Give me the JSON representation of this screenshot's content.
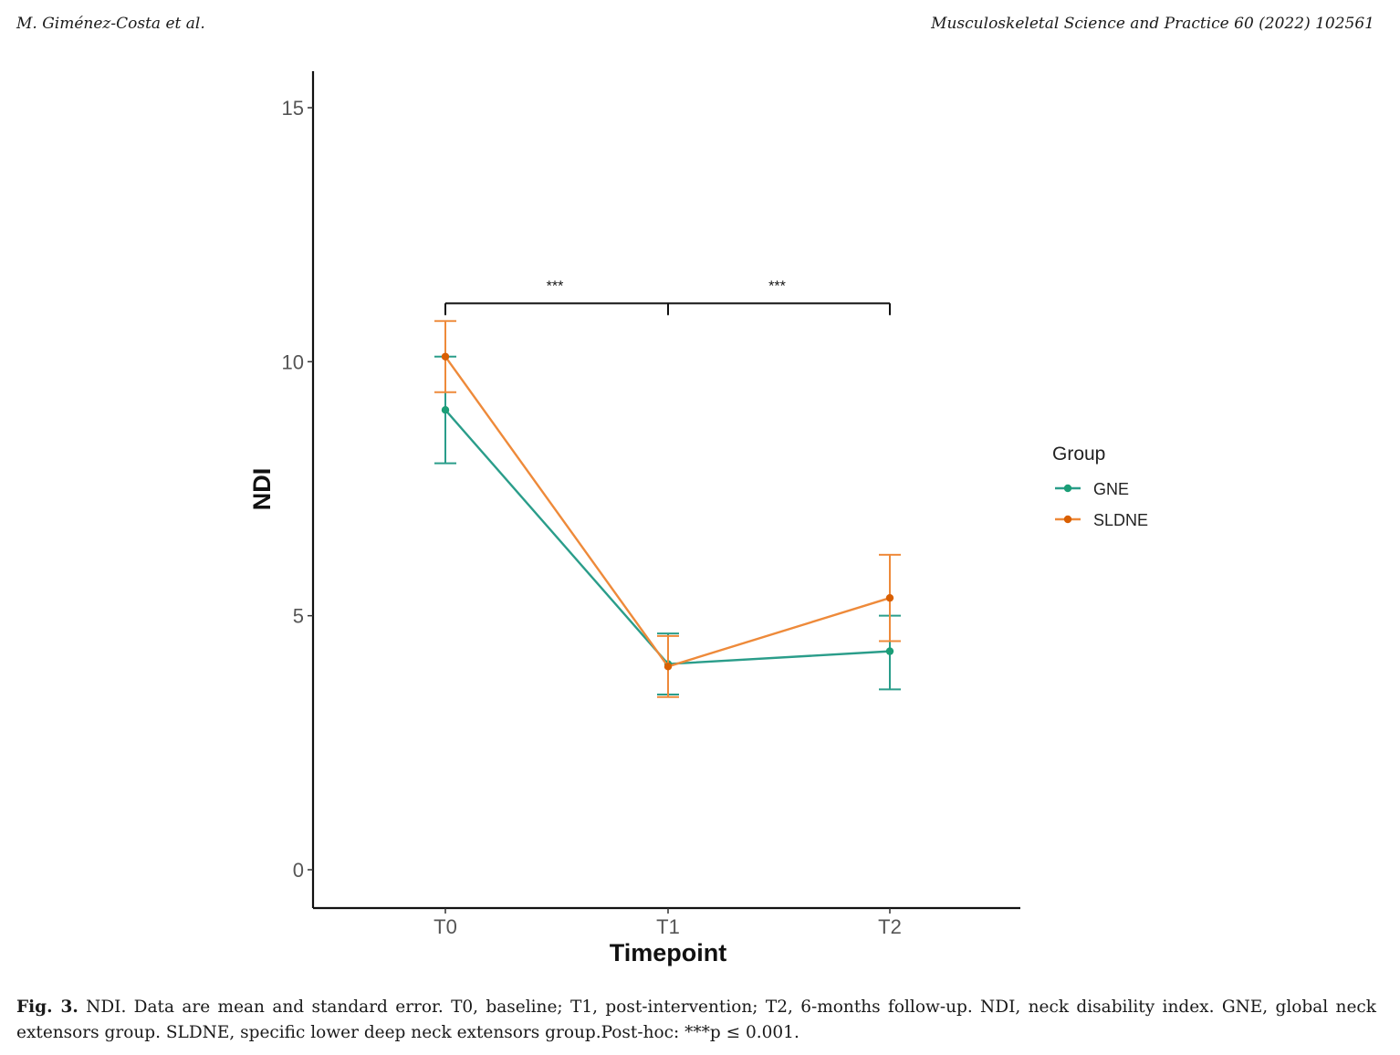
{
  "header": {
    "left": "M. Giménez-Costa et al.",
    "right": "Musculoskeletal Science and Practice 60 (2022) 102561"
  },
  "caption": {
    "label": "Fig. 3.",
    "text": "NDI. Data are mean and standard error. T0, baseline; T1, post-intervention; T2, 6-months follow-up. NDI, neck disability index. GNE, global neck extensors group. SLDNE, specific lower deep neck extensors group.Post-hoc: ***p ≤ 0.001."
  },
  "chart_data": {
    "type": "line",
    "title": "",
    "xlabel": "Timepoint",
    "ylabel": "NDI",
    "categories": [
      "T0",
      "T1",
      "T2"
    ],
    "yticks": [
      0,
      5,
      10,
      15
    ],
    "ylim": [
      -0.75,
      15.75
    ],
    "grid": false,
    "legend": {
      "title": "Group",
      "position": "right"
    },
    "series": [
      {
        "name": "GNE",
        "color": "#1b9e77",
        "values": [
          9.05,
          4.05,
          4.3
        ],
        "lower": [
          8.0,
          3.45,
          3.55
        ],
        "upper": [
          10.1,
          4.65,
          5.0
        ]
      },
      {
        "name": "SLDNE",
        "color": "#d95f02",
        "values": [
          10.1,
          4.0,
          5.35
        ],
        "lower": [
          9.4,
          3.4,
          4.5
        ],
        "upper": [
          10.8,
          4.6,
          6.2
        ]
      }
    ],
    "significance": [
      {
        "from": "T0",
        "to": "T1",
        "label": "***"
      },
      {
        "from": "T1",
        "to": "T2",
        "label": "***"
      }
    ],
    "bracket_y": 11.15
  }
}
